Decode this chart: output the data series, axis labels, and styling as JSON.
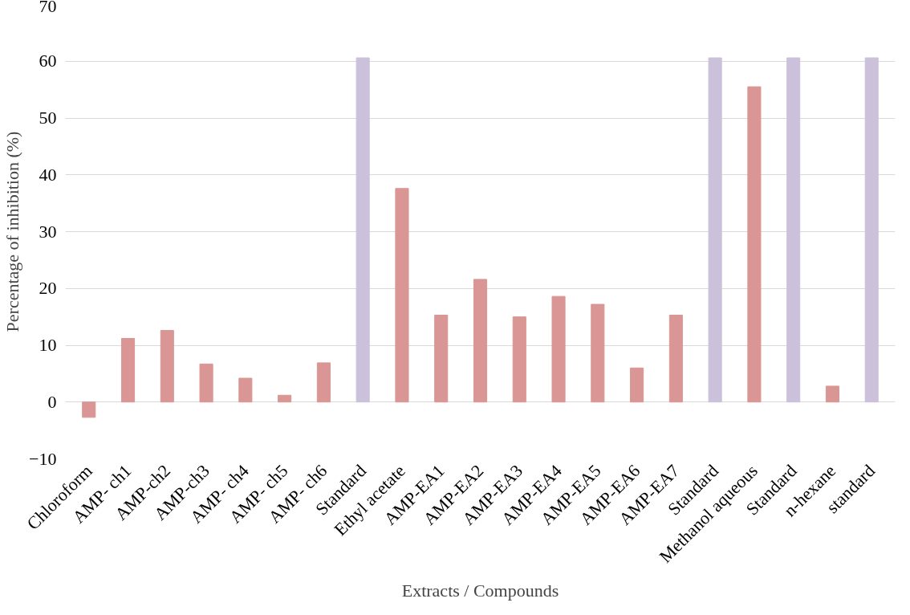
{
  "chart_data": {
    "type": "bar",
    "xlabel": "Extracts / Compounds",
    "ylabel": "Percentage of inhibition (%)",
    "categories": [
      "Chloroform",
      "AMP- ch1",
      "AMP-ch2",
      "AMP-ch3",
      "AMP- ch4",
      "AMP- ch5",
      "AMP- ch6",
      "Standard",
      "Ethyl acetate",
      "AMP-EA1",
      "AMP-EA2",
      "AMP-EA3",
      "AMP-EA4",
      "AMP-EA5",
      "AMP-EA6",
      "AMP-EA7",
      "Standard",
      "Methanol aqueous",
      "Standard",
      "n-hexane",
      "standard"
    ],
    "values": [
      -2.7,
      11.2,
      12.6,
      6.7,
      4.2,
      1.2,
      6.9,
      60.6,
      37.6,
      15.3,
      21.6,
      15.0,
      18.6,
      17.2,
      6.0,
      15.3,
      60.6,
      55.5,
      60.6,
      2.8,
      60.6
    ],
    "colors": [
      "#d99694",
      "#d99694",
      "#d99694",
      "#d99694",
      "#d99694",
      "#d99694",
      "#d99694",
      "#ccc1da",
      "#d99694",
      "#d99694",
      "#d99694",
      "#d99694",
      "#d99694",
      "#d99694",
      "#d99694",
      "#d99694",
      "#ccc1da",
      "#d99694",
      "#ccc1da",
      "#d99694",
      "#ccc1da"
    ],
    "ylim": [
      -10,
      70
    ],
    "yticks": [
      -10,
      0,
      10,
      20,
      30,
      40,
      50,
      60,
      70
    ],
    "grid": "y"
  }
}
